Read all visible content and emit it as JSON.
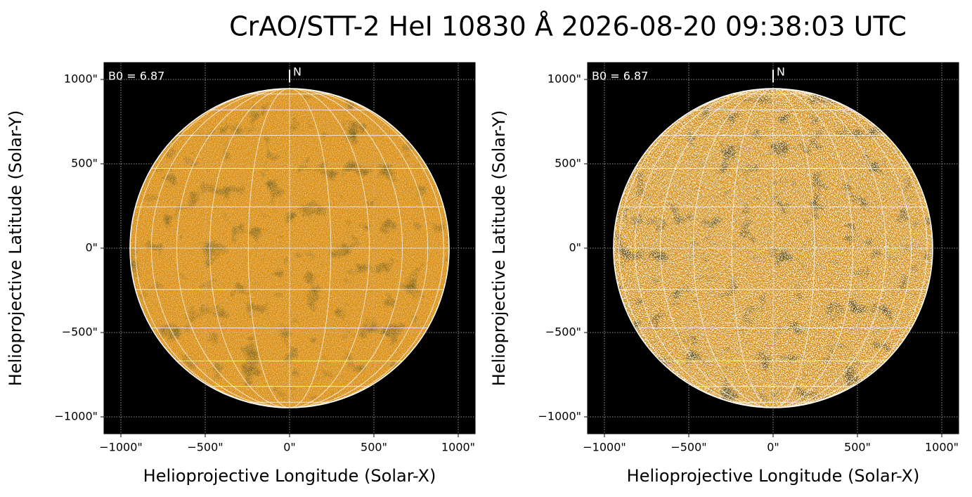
{
  "title": "CrAO/STT-2 HeI 10830 Å 2026-08-20 09:38:03 UTC",
  "chart_data": [
    {
      "type": "image",
      "annotation": "B0 = 6.87",
      "north_label": "N",
      "xlabel": "Helioprojective Longitude (Solar-X)",
      "ylabel": "Helioprojective Latitude (Solar-Y)",
      "xlim": [
        -1100,
        1100
      ],
      "ylim": [
        -1100,
        1100
      ],
      "solar_radius": 946,
      "color": "#d88a0c",
      "grid": true,
      "xticks": [
        {
          "value": -1000,
          "label": "−1000\""
        },
        {
          "value": -500,
          "label": "−500\""
        },
        {
          "value": 0,
          "label": "0\""
        },
        {
          "value": 500,
          "label": "500\""
        },
        {
          "value": 1000,
          "label": "1000\""
        }
      ],
      "yticks": [
        {
          "value": -1000,
          "label": "−1000\""
        },
        {
          "value": -500,
          "label": "−500\""
        },
        {
          "value": 0,
          "label": "0\""
        },
        {
          "value": 500,
          "label": "500\""
        },
        {
          "value": 1000,
          "label": "1000\""
        }
      ]
    },
    {
      "type": "image",
      "annotation": "B0 = 6.87",
      "north_label": "N",
      "xlabel": "Helioprojective Longitude (Solar-X)",
      "ylabel": "Helioprojective Latitude (Solar-Y)",
      "xlim": [
        -1100,
        1100
      ],
      "ylim": [
        -1100,
        1100
      ],
      "solar_radius": 946,
      "color": "#d2860a",
      "grid": true,
      "xticks": [
        {
          "value": -1000,
          "label": "−1000\""
        },
        {
          "value": -500,
          "label": "−500\""
        },
        {
          "value": 0,
          "label": "0\""
        },
        {
          "value": 500,
          "label": "500\""
        },
        {
          "value": 1000,
          "label": "1000\""
        }
      ],
      "yticks": [
        {
          "value": -1000,
          "label": "−1000\""
        },
        {
          "value": -500,
          "label": "−500\""
        },
        {
          "value": 0,
          "label": "0\""
        },
        {
          "value": 500,
          "label": "500\""
        },
        {
          "value": 1000,
          "label": "1000\""
        }
      ]
    }
  ]
}
